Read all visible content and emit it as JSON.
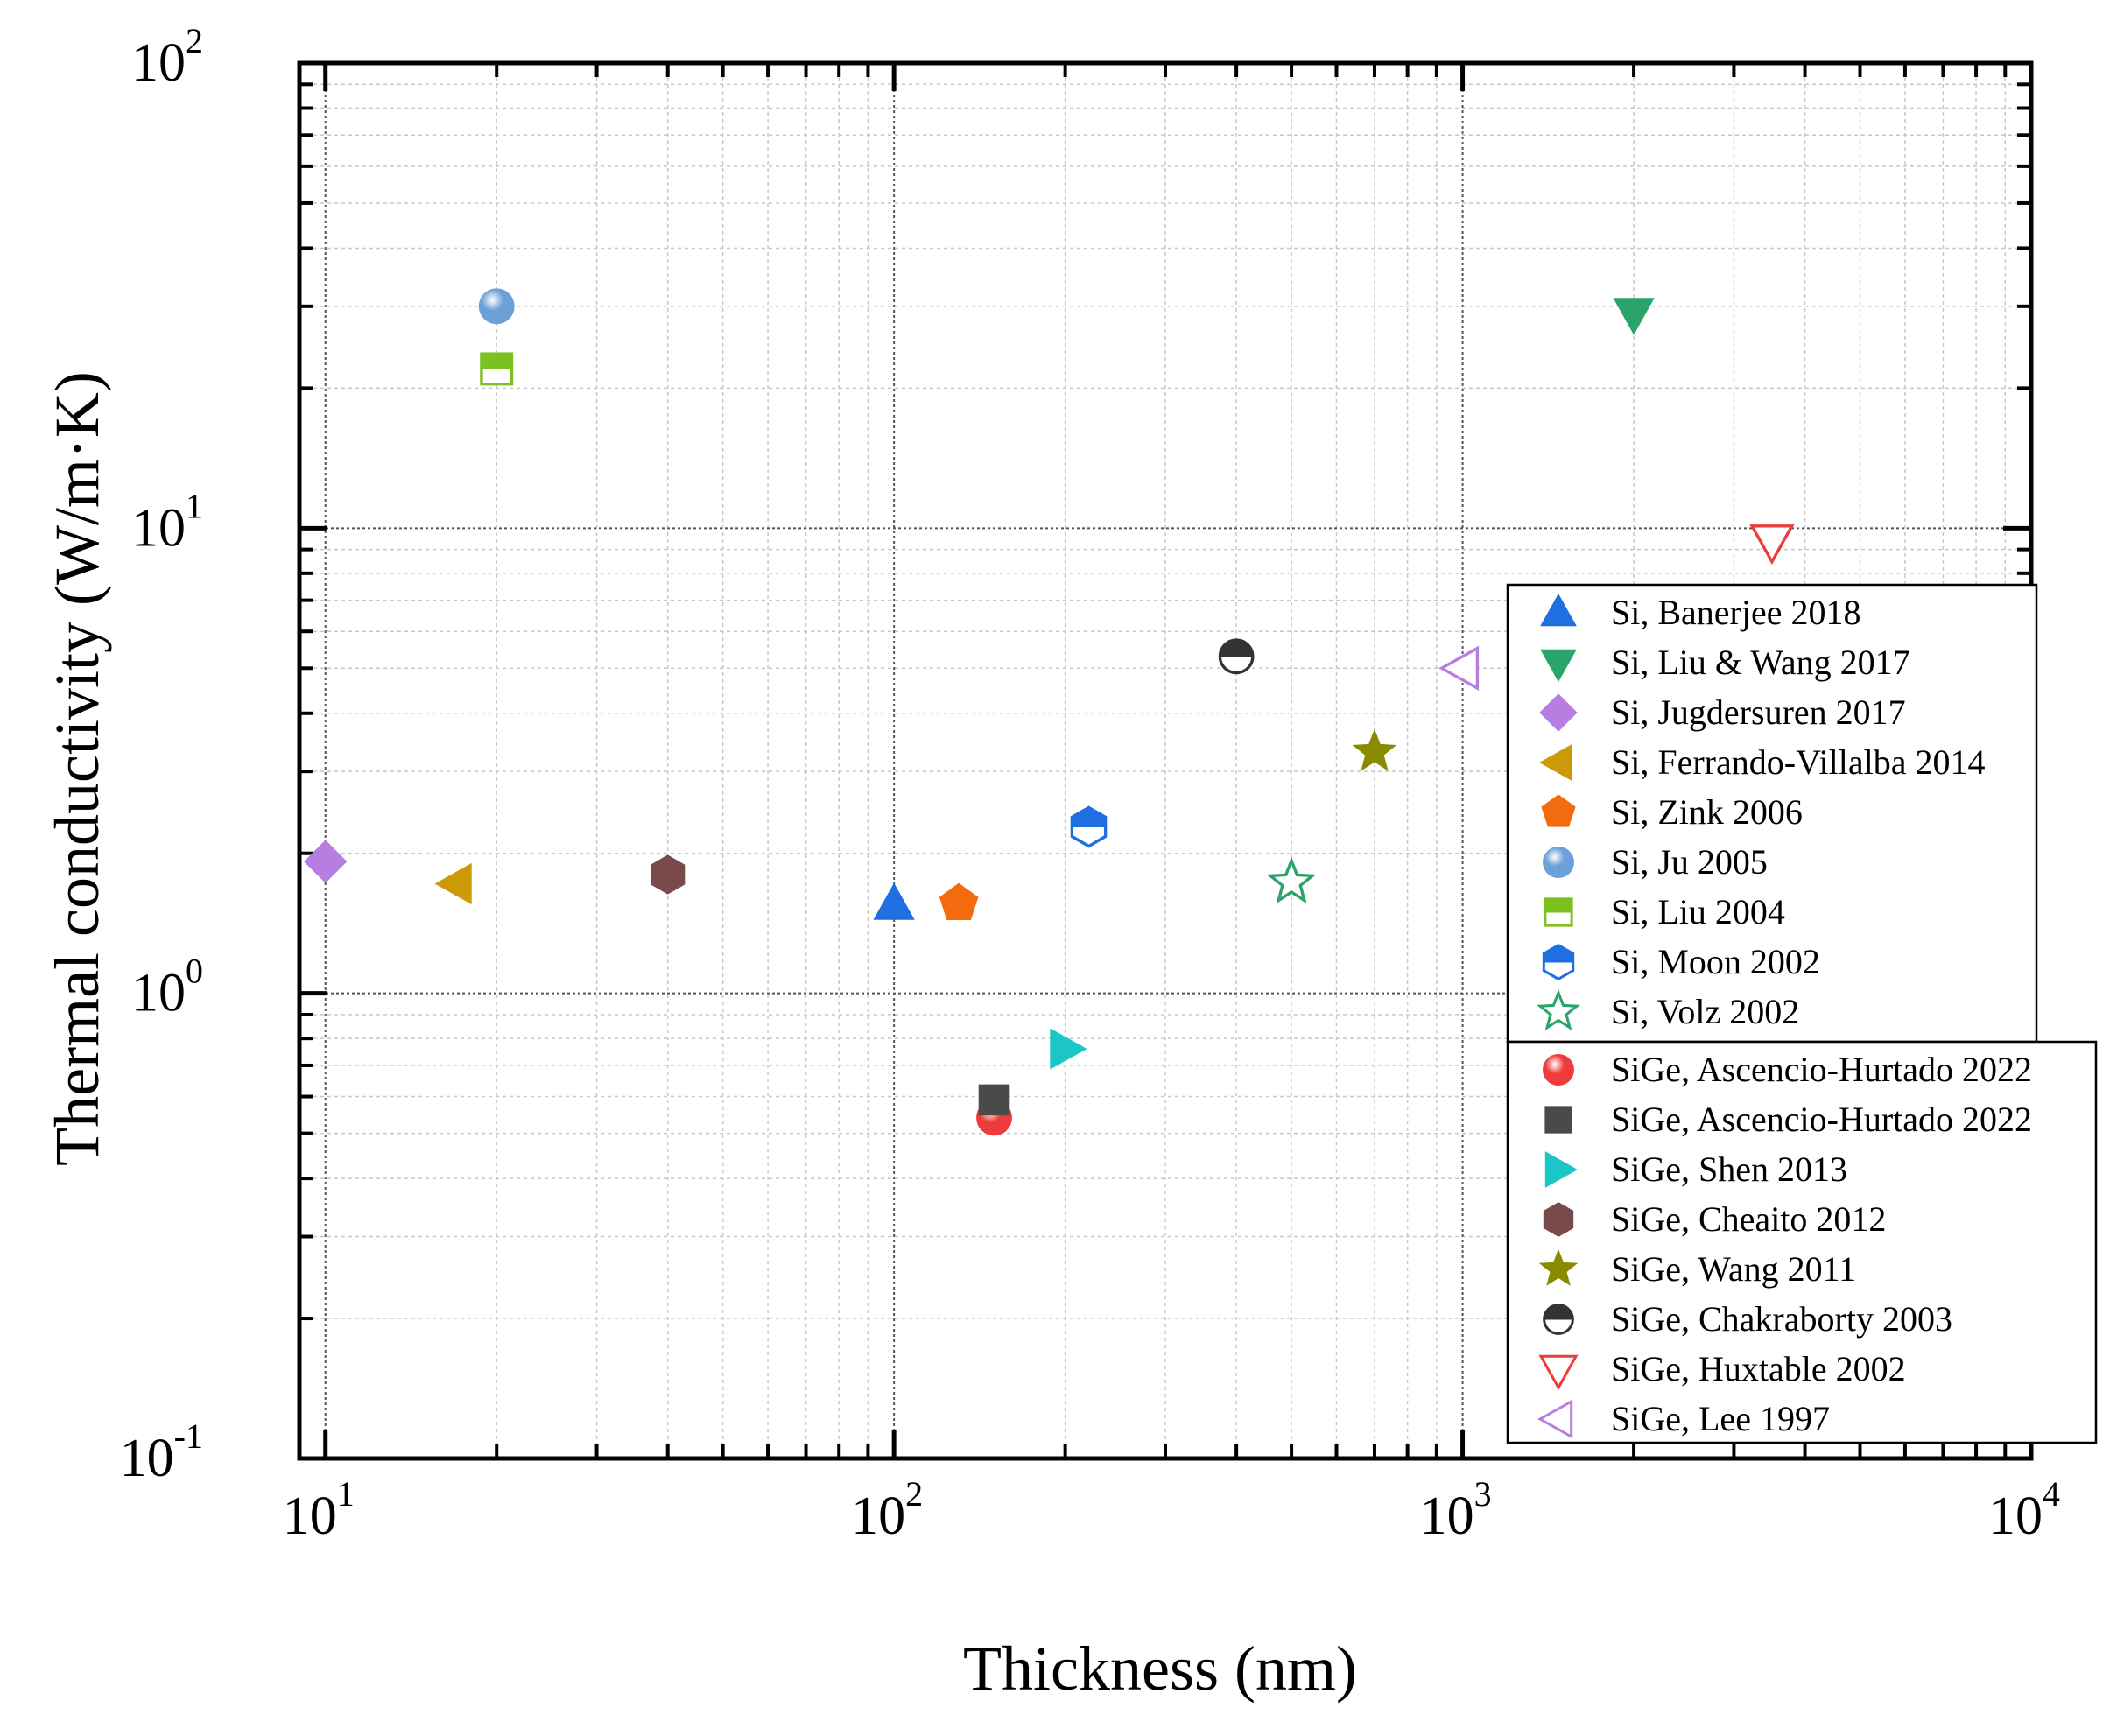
{
  "chart_data": {
    "type": "scatter",
    "xlabel": "Thickness (nm)",
    "ylabel": "Thermal conductivity (W/m·K)",
    "xscale": "log",
    "yscale": "log",
    "xlim": [
      9,
      10000
    ],
    "ylim": [
      0.1,
      100
    ],
    "grid": true,
    "legend_placement": "right",
    "x_ticks": [
      {
        "value": 10,
        "base": "10",
        "exp": "1"
      },
      {
        "value": 100,
        "base": "10",
        "exp": "2"
      },
      {
        "value": 1000,
        "base": "10",
        "exp": "3"
      },
      {
        "value": 10000,
        "base": "10",
        "exp": "4"
      }
    ],
    "y_ticks": [
      {
        "value": 0.1,
        "base": "10",
        "exp": "-1"
      },
      {
        "value": 1,
        "base": "10",
        "exp": "0"
      },
      {
        "value": 10,
        "base": "10",
        "exp": "1"
      },
      {
        "value": 100,
        "base": "10",
        "exp": "2"
      }
    ],
    "series": [
      {
        "name": "Si, Banerjee 2018",
        "marker": "triangle-up",
        "color": "#1f6fe0",
        "fill": "solid",
        "points": [
          [
            100,
            1.55
          ]
        ]
      },
      {
        "name": "Si, Liu & Wang 2017",
        "marker": "triangle-down",
        "color": "#2aa46a",
        "fill": "solid",
        "points": [
          [
            2000,
            29
          ]
        ]
      },
      {
        "name": "Si, Jugdersuren 2017",
        "marker": "diamond",
        "color": "#b57ee0",
        "fill": "solid",
        "points": [
          [
            10,
            1.92
          ]
        ]
      },
      {
        "name": "Si, Ferrando-Villalba 2014",
        "marker": "triangle-left",
        "color": "#cc9a06",
        "fill": "solid",
        "points": [
          [
            17,
            1.72
          ]
        ]
      },
      {
        "name": "Si, Zink 2006",
        "marker": "pentagon",
        "color": "#f26b0f",
        "fill": "solid",
        "points": [
          [
            130,
            1.56
          ]
        ]
      },
      {
        "name": "Si, Ju 2005",
        "marker": "sphere",
        "color": "#6ca0d8",
        "fill": "sphere",
        "points": [
          [
            20,
            30
          ]
        ]
      },
      {
        "name": "Si, Liu 2004",
        "marker": "square",
        "color": "#7bc11f",
        "fill": "top-half",
        "points": [
          [
            20,
            22
          ]
        ]
      },
      {
        "name": "Si, Moon 2002",
        "marker": "hexagon",
        "color": "#1f6fe0",
        "fill": "top-half",
        "points": [
          [
            220,
            2.28
          ]
        ]
      },
      {
        "name": "Si, Volz 2002",
        "marker": "star",
        "color": "#2aa46a",
        "fill": "open",
        "points": [
          [
            500,
            1.73
          ]
        ]
      },
      {
        "name": "SiGe, Ascencio-Hurtado 2022",
        "marker": "sphere",
        "color": "#ee3b3b",
        "fill": "sphere",
        "points": [
          [
            150,
            0.54
          ]
        ]
      },
      {
        "name": "SiGe, Ascencio-Hurtado 2022",
        "marker": "square",
        "color": "#4a4a4a",
        "fill": "solid",
        "points": [
          [
            150,
            0.59
          ]
        ]
      },
      {
        "name": "SiGe, Shen 2013",
        "marker": "triangle-right",
        "color": "#1cc6c6",
        "fill": "solid",
        "points": [
          [
            200,
            0.76
          ]
        ]
      },
      {
        "name": "SiGe, Cheaito 2012",
        "marker": "hexagon",
        "color": "#7a4a4a",
        "fill": "solid",
        "points": [
          [
            40,
            1.8
          ]
        ]
      },
      {
        "name": "SiGe, Wang 2011",
        "marker": "star",
        "color": "#8a8a00",
        "fill": "solid",
        "points": [
          [
            700,
            3.3
          ]
        ]
      },
      {
        "name": "SiGe, Chakraborty 2003",
        "marker": "circle",
        "color": "#333333",
        "fill": "bottom-half",
        "points": [
          [
            400,
            5.3
          ]
        ]
      },
      {
        "name": "SiGe, Huxtable 2002",
        "marker": "triangle-down",
        "color": "#ee3b3b",
        "fill": "open",
        "points": [
          [
            3500,
            9.4
          ]
        ]
      },
      {
        "name": "SiGe, Lee 1997",
        "marker": "triangle-left",
        "color": "#b57ee0",
        "fill": "open",
        "points": [
          [
            1000,
            5.0
          ]
        ]
      }
    ],
    "legend_groups": [
      [
        0,
        1,
        2,
        3,
        4,
        5,
        6,
        7,
        8
      ],
      [
        9,
        10,
        11,
        12,
        13,
        14,
        15,
        16
      ]
    ]
  }
}
